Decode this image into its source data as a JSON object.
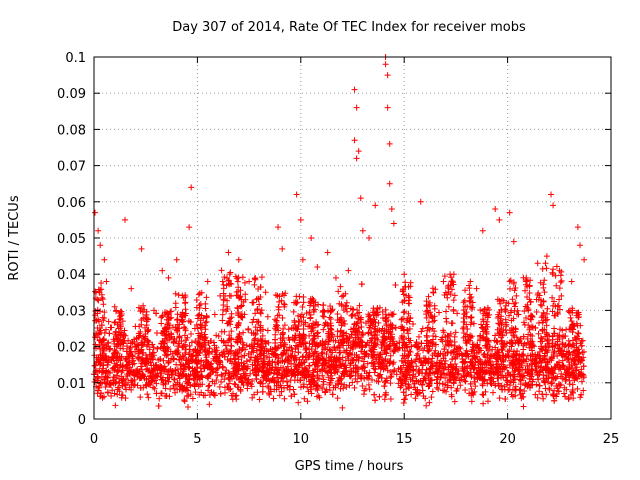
{
  "chart_data": {
    "type": "scatter",
    "title": "Day 307 of 2014, Rate Of TEC Index for receiver mobs",
    "xlabel": "GPS time / hours",
    "ylabel": "ROTI / TECUs",
    "xlim": [
      0,
      25
    ],
    "ylim": [
      0,
      0.1
    ],
    "xticks": [
      "0",
      "5",
      "10",
      "15",
      "20",
      "25"
    ],
    "yticks": [
      "0",
      "0.01",
      "0.02",
      "0.03",
      "0.04",
      "0.05",
      "0.06",
      "0.07",
      "0.08",
      "0.09",
      "0.1"
    ],
    "grid": true,
    "marker": "+",
    "series": [
      {
        "name": "ROTI",
        "color": "#ff0000",
        "points": [
          [
            0.05,
            0.057
          ],
          [
            0.1,
            0.035
          ],
          [
            0.2,
            0.052
          ],
          [
            0.3,
            0.048
          ],
          [
            0.5,
            0.044
          ],
          [
            0.6,
            0.038
          ],
          [
            1.0,
            0.031
          ],
          [
            1.5,
            0.055
          ],
          [
            1.8,
            0.036
          ],
          [
            2.3,
            0.047
          ],
          [
            2.9,
            0.03
          ],
          [
            3.3,
            0.041
          ],
          [
            3.6,
            0.039
          ],
          [
            4.0,
            0.044
          ],
          [
            4.4,
            0.032
          ],
          [
            4.7,
            0.064
          ],
          [
            4.6,
            0.053
          ],
          [
            5.5,
            0.038
          ],
          [
            6.1,
            0.034
          ],
          [
            6.5,
            0.046
          ],
          [
            7.0,
            0.044
          ],
          [
            7.5,
            0.038
          ],
          [
            8.3,
            0.035
          ],
          [
            8.9,
            0.053
          ],
          [
            9.1,
            0.047
          ],
          [
            9.8,
            0.062
          ],
          [
            10.0,
            0.055
          ],
          [
            10.1,
            0.044
          ],
          [
            10.5,
            0.05
          ],
          [
            10.8,
            0.042
          ],
          [
            11.3,
            0.046
          ],
          [
            11.7,
            0.039
          ],
          [
            12.3,
            0.041
          ],
          [
            12.6,
            0.091
          ],
          [
            12.6,
            0.077
          ],
          [
            12.7,
            0.086
          ],
          [
            12.7,
            0.072
          ],
          [
            12.8,
            0.074
          ],
          [
            12.9,
            0.061
          ],
          [
            13.0,
            0.052
          ],
          [
            13.3,
            0.05
          ],
          [
            13.6,
            0.059
          ],
          [
            14.1,
            0.1
          ],
          [
            14.1,
            0.098
          ],
          [
            14.2,
            0.095
          ],
          [
            14.2,
            0.086
          ],
          [
            14.3,
            0.076
          ],
          [
            14.3,
            0.065
          ],
          [
            14.4,
            0.058
          ],
          [
            14.5,
            0.054
          ],
          [
            15.0,
            0.04
          ],
          [
            15.8,
            0.06
          ],
          [
            16.4,
            0.035
          ],
          [
            16.9,
            0.038
          ],
          [
            17.4,
            0.04
          ],
          [
            18.2,
            0.038
          ],
          [
            18.5,
            0.036
          ],
          [
            18.8,
            0.052
          ],
          [
            19.4,
            0.058
          ],
          [
            19.6,
            0.055
          ],
          [
            20.1,
            0.057
          ],
          [
            20.3,
            0.049
          ],
          [
            20.9,
            0.039
          ],
          [
            21.4,
            0.033
          ],
          [
            21.9,
            0.045
          ],
          [
            22.1,
            0.062
          ],
          [
            22.2,
            0.059
          ],
          [
            22.6,
            0.034
          ],
          [
            23.1,
            0.038
          ],
          [
            23.4,
            0.053
          ],
          [
            23.5,
            0.048
          ],
          [
            23.7,
            0.044
          ]
        ],
        "dense_band": {
          "x_range": [
            0,
            23.7
          ],
          "y_range": [
            0.003,
            0.03
          ],
          "note": "thousands of points concentrated roughly between 0.005 and 0.025 TECUs across the whole day"
        }
      }
    ]
  }
}
